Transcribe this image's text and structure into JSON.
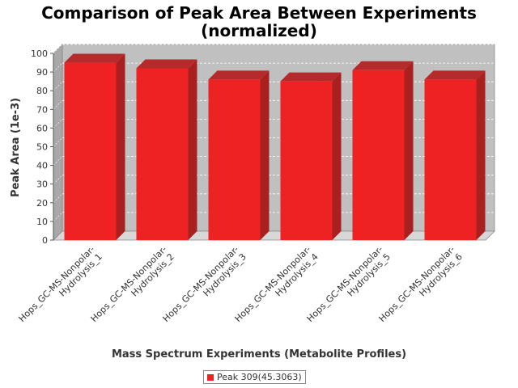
{
  "chart_data": {
    "type": "bar",
    "title_line1": "Comparison of Peak Area Between Experiments",
    "title_line2": "(normalized)",
    "xlabel": "Mass Spectrum Experiments (Metabolite Profiles)",
    "ylabel": "Peak Area (1e-3)",
    "ylim": [
      0,
      100
    ],
    "yticks": [
      0,
      10,
      20,
      30,
      40,
      50,
      60,
      70,
      80,
      90,
      100
    ],
    "categories": [
      "Hops_GC-MS-Nonpolar-Hydrolysis_1",
      "Hops_GC-MS-Nonpolar-Hydrolysis_2",
      "Hops_GC-MS-Nonpolar-Hydrolysis_3",
      "Hops_GC-MS-Nonpolar-Hydrolysis_4",
      "Hops_GC-MS-Nonpolar-Hydrolysis_5",
      "Hops_GC-MS-Nonpolar-Hydrolysis_6"
    ],
    "category_lines": [
      [
        "Hops_GC-MS-Nonpolar-",
        "Hydrolysis_1"
      ],
      [
        "Hops_GC-MS-Nonpolar-",
        "Hydrolysis_2"
      ],
      [
        "Hops_GC-MS-Nonpolar-",
        "Hydrolysis_3"
      ],
      [
        "Hops_GC-MS-Nonpolar-",
        "Hydrolysis_4"
      ],
      [
        "Hops_GC-MS-Nonpolar-",
        "Hydrolysis_5"
      ],
      [
        "Hops_GC-MS-Nonpolar-",
        "Hydrolysis_6"
      ]
    ],
    "series": [
      {
        "name": "Peak 309(45.3063)",
        "values": [
          95,
          92,
          86,
          85,
          91,
          86
        ],
        "color": "#ee2222"
      }
    ],
    "grid": true,
    "legend": "bottom-center",
    "plot_background": "#c0c0c0",
    "bar_style": "3d"
  }
}
